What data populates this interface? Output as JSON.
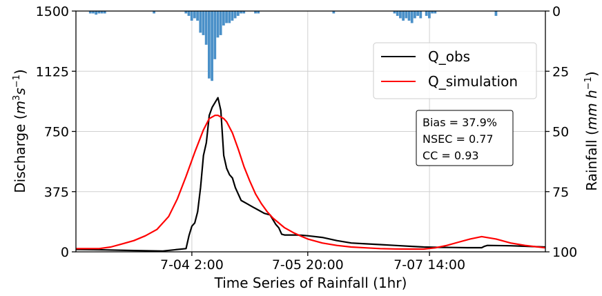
{
  "chart_data": {
    "type": "line",
    "xlabel": "Time Series of Rainfall (1hr)",
    "ylabel_left": "Discharge (m³s⁻¹)",
    "ylabel_left_parts": {
      "prefix": "Discharge (",
      "unit_m": "m",
      "unit_sup1": "3",
      "unit_s": "s",
      "unit_sup2": "−1",
      "suffix": ")"
    },
    "ylabel_right": "Rainfall (mm h⁻¹)",
    "ylabel_right_parts": {
      "prefix": "Rainfall (",
      "unit_mm": "mm",
      "unit_h": " h",
      "unit_sup": "−1",
      "suffix": ")"
    },
    "x_range": [
      0,
      162
    ],
    "x_ticks": [
      {
        "x": 40,
        "label": "7-04  2:00"
      },
      {
        "x": 80,
        "label": "7-05  20:00"
      },
      {
        "x": 122,
        "label": "7-07  14:00"
      }
    ],
    "y_left_range": [
      0,
      1500
    ],
    "y_left_ticks": [
      "0",
      "375",
      "750",
      "1125",
      "1500"
    ],
    "y_right_range": [
      100,
      0
    ],
    "y_right_ticks": [
      "0",
      "25",
      "50",
      "75",
      "100"
    ],
    "grid": true,
    "legend_position": "top-right",
    "series": [
      {
        "name": "Q_obs",
        "color": "#000000",
        "x": [
          0,
          10,
          20,
          30,
          38,
          39,
          40,
          41,
          42,
          43,
          44,
          45,
          46,
          47,
          48,
          49,
          50,
          51,
          52,
          53,
          54,
          55,
          57,
          59,
          61,
          63,
          65,
          67,
          69,
          70,
          71,
          72,
          74,
          76,
          78,
          80,
          85,
          90,
          95,
          100,
          105,
          110,
          115,
          120,
          125,
          130,
          135,
          140,
          141,
          142,
          150,
          162
        ],
        "y": [
          15,
          12,
          8,
          5,
          20,
          100,
          160,
          180,
          250,
          400,
          600,
          680,
          850,
          900,
          930,
          960,
          880,
          600,
          520,
          480,
          460,
          400,
          320,
          300,
          280,
          260,
          240,
          230,
          170,
          150,
          110,
          105,
          105,
          105,
          103,
          100,
          90,
          70,
          55,
          50,
          45,
          40,
          35,
          30,
          28,
          27,
          26,
          26,
          35,
          40,
          38,
          30
        ]
      },
      {
        "name": "Q_simulation",
        "color": "#ff0000",
        "x": [
          0,
          8,
          12,
          16,
          20,
          24,
          28,
          32,
          35,
          38,
          41,
          44,
          46,
          48,
          49,
          50,
          51,
          52,
          54,
          56,
          58,
          60,
          62,
          64,
          66,
          68,
          70,
          72,
          75,
          78,
          80,
          85,
          90,
          95,
          100,
          105,
          110,
          115,
          120,
          124,
          128,
          132,
          136,
          140,
          145,
          150,
          155,
          162
        ],
        "y": [
          20,
          20,
          30,
          50,
          70,
          100,
          140,
          220,
          330,
          470,
          620,
          760,
          830,
          850,
          850,
          840,
          830,
          810,
          740,
          640,
          530,
          440,
          360,
          300,
          250,
          210,
          180,
          150,
          120,
          95,
          80,
          55,
          40,
          30,
          25,
          20,
          18,
          17,
          17,
          25,
          40,
          60,
          80,
          95,
          80,
          55,
          40,
          25
        ]
      }
    ],
    "rainfall": {
      "color": "#4a90c8",
      "bars": [
        {
          "x": 5,
          "v": 1
        },
        {
          "x": 6,
          "v": 1
        },
        {
          "x": 7,
          "v": 1.5
        },
        {
          "x": 8,
          "v": 1
        },
        {
          "x": 9,
          "v": 1
        },
        {
          "x": 10,
          "v": 1
        },
        {
          "x": 27,
          "v": 1
        },
        {
          "x": 38,
          "v": 1
        },
        {
          "x": 39,
          "v": 2
        },
        {
          "x": 40,
          "v": 4
        },
        {
          "x": 41,
          "v": 3
        },
        {
          "x": 42,
          "v": 4
        },
        {
          "x": 43,
          "v": 9
        },
        {
          "x": 44,
          "v": 10
        },
        {
          "x": 45,
          "v": 14
        },
        {
          "x": 46,
          "v": 28
        },
        {
          "x": 47,
          "v": 29
        },
        {
          "x": 48,
          "v": 20
        },
        {
          "x": 49,
          "v": 11
        },
        {
          "x": 50,
          "v": 10
        },
        {
          "x": 51,
          "v": 6
        },
        {
          "x": 52,
          "v": 5
        },
        {
          "x": 53,
          "v": 5
        },
        {
          "x": 54,
          "v": 4
        },
        {
          "x": 55,
          "v": 3
        },
        {
          "x": 56,
          "v": 2
        },
        {
          "x": 57,
          "v": 1
        },
        {
          "x": 58,
          "v": 1
        },
        {
          "x": 62,
          "v": 1
        },
        {
          "x": 63,
          "v": 1
        },
        {
          "x": 89,
          "v": 1
        },
        {
          "x": 110,
          "v": 1
        },
        {
          "x": 111,
          "v": 2
        },
        {
          "x": 112,
          "v": 3
        },
        {
          "x": 113,
          "v": 4
        },
        {
          "x": 114,
          "v": 3
        },
        {
          "x": 115,
          "v": 4
        },
        {
          "x": 116,
          "v": 5
        },
        {
          "x": 117,
          "v": 3
        },
        {
          "x": 118,
          "v": 2
        },
        {
          "x": 119,
          "v": 3
        },
        {
          "x": 121,
          "v": 2
        },
        {
          "x": 122,
          "v": 3
        },
        {
          "x": 123,
          "v": 1
        },
        {
          "x": 124,
          "v": 1
        },
        {
          "x": 145,
          "v": 2
        }
      ]
    },
    "stats_box": [
      "Bias = 37.9%",
      "NSEC = 0.77",
      "CC = 0.93"
    ]
  }
}
